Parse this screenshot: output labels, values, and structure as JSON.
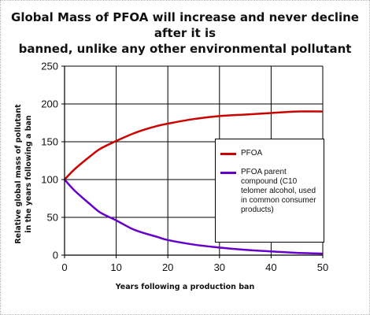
{
  "chart_data": {
    "type": "line",
    "title_lines": [
      "Global Mass of PFOA will increase and never decline after it is",
      "banned, unlike any other environmental pollutant"
    ],
    "ylabel_lines": [
      "Relative global mass of pollutant",
      "in the years following a ban"
    ],
    "xlabel": "Years following a production ban",
    "xlim": [
      0,
      50
    ],
    "ylim": [
      0,
      250
    ],
    "x_ticks": [
      0,
      10,
      20,
      30,
      40,
      50
    ],
    "y_ticks": [
      0,
      50,
      100,
      150,
      200,
      250
    ],
    "grid": true,
    "legend_position": "right",
    "series": [
      {
        "name": "PFOA",
        "color": "#cc0000",
        "x": [
          0,
          2,
          5,
          7,
          10,
          13,
          15,
          18,
          20,
          25,
          30,
          35,
          40,
          45,
          50
        ],
        "values": [
          100,
          114,
          131,
          141,
          151,
          160,
          165,
          171,
          174,
          180,
          184,
          186,
          188,
          190,
          190
        ]
      },
      {
        "name": "PFOA parent compound (C10 telomer alcohol, used in common consumer products)",
        "color": "#6600cc",
        "x": [
          0,
          2,
          5,
          7,
          10,
          13,
          15,
          18,
          20,
          25,
          30,
          35,
          40,
          45,
          50
        ],
        "values": [
          100,
          85,
          67,
          56,
          46,
          35,
          30,
          24,
          20,
          14,
          10,
          7,
          5,
          3,
          2
        ]
      }
    ]
  }
}
